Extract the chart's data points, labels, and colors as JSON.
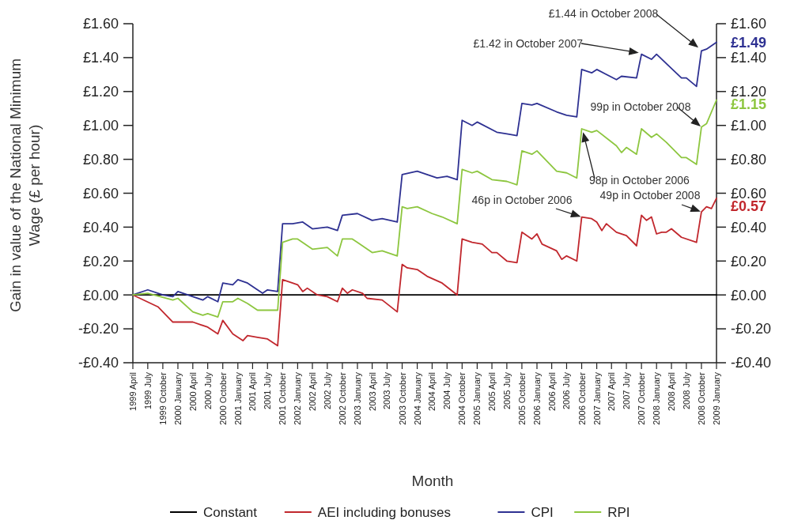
{
  "chart_data": {
    "type": "line",
    "xlabel": "Month",
    "ylabel": "Gain in value of the National Minimum Wage (£ per hour)",
    "xlim": [
      "1999-04",
      "2009-01"
    ],
    "xticks": [
      {
        "value": "1999-04",
        "label": "1999 April"
      },
      {
        "value": "1999-07",
        "label": "1999 July"
      },
      {
        "value": "1999-10",
        "label": "1999 October"
      },
      {
        "value": "2000-01",
        "label": "2000 January"
      },
      {
        "value": "2000-04",
        "label": "2000 April"
      },
      {
        "value": "2000-07",
        "label": "2000 July"
      },
      {
        "value": "2000-10",
        "label": "2000 October"
      },
      {
        "value": "2001-01",
        "label": "2001 January"
      },
      {
        "value": "2001-04",
        "label": "2001 April"
      },
      {
        "value": "2001-07",
        "label": "2001 July"
      },
      {
        "value": "2001-10",
        "label": "2001 October"
      },
      {
        "value": "2002-01",
        "label": "2002 January"
      },
      {
        "value": "2002-04",
        "label": "2002 April"
      },
      {
        "value": "2002-07",
        "label": "2002 July"
      },
      {
        "value": "2002-10",
        "label": "2002 October"
      },
      {
        "value": "2003-01",
        "label": "2003 January"
      },
      {
        "value": "2003-04",
        "label": "2003 April"
      },
      {
        "value": "2003-07",
        "label": "2003 July"
      },
      {
        "value": "2003-10",
        "label": "2003 October"
      },
      {
        "value": "2004-01",
        "label": "2004 January"
      },
      {
        "value": "2004-04",
        "label": "2004 April"
      },
      {
        "value": "2004-07",
        "label": "2004 July"
      },
      {
        "value": "2004-10",
        "label": "2004 October"
      },
      {
        "value": "2005-01",
        "label": "2005 January"
      },
      {
        "value": "2005-04",
        "label": "2005 April"
      },
      {
        "value": "2005-07",
        "label": "2005 July"
      },
      {
        "value": "2005-10",
        "label": "2005 October"
      },
      {
        "value": "2006-01",
        "label": "2006 January"
      },
      {
        "value": "2006-04",
        "label": "2006 April"
      },
      {
        "value": "2006-07",
        "label": "2006 July"
      },
      {
        "value": "2006-10",
        "label": "2006 October"
      },
      {
        "value": "2007-01",
        "label": "2007 January"
      },
      {
        "value": "2007-04",
        "label": "2007 April"
      },
      {
        "value": "2007-07",
        "label": "2007 July"
      },
      {
        "value": "2007-10",
        "label": "2007 October"
      },
      {
        "value": "2008-01",
        "label": "2008 January"
      },
      {
        "value": "2008-04",
        "label": "2008 April"
      },
      {
        "value": "2008-07",
        "label": "2008 July"
      },
      {
        "value": "2008-10",
        "label": "2008 October"
      },
      {
        "value": "2009-01",
        "label": "2009 January"
      }
    ],
    "ylim": [
      -0.4,
      1.6
    ],
    "yticks": [
      {
        "value": -0.4,
        "label": "-£0.40"
      },
      {
        "value": -0.2,
        "label": "-£0.20"
      },
      {
        "value": 0,
        "label": "£0.00"
      },
      {
        "value": 0.2,
        "label": "£0.20"
      },
      {
        "value": 0.4,
        "label": "£0.40"
      },
      {
        "value": 0.6,
        "label": "£0.60"
      },
      {
        "value": 0.8,
        "label": "£0.80"
      },
      {
        "value": 1.0,
        "label": "£1.00"
      },
      {
        "value": 1.2,
        "label": "£1.20"
      },
      {
        "value": 1.4,
        "label": "£1.40"
      },
      {
        "value": 1.6,
        "label": "£1.60"
      }
    ],
    "y2lim": [
      -0.4,
      1.6
    ],
    "y2ticks": [
      {
        "value": -0.4,
        "label": "-£0.40"
      },
      {
        "value": -0.2,
        "label": "-£0.20"
      },
      {
        "value": 0,
        "label": "£0.00"
      },
      {
        "value": 0.2,
        "label": "£0.20"
      },
      {
        "value": 0.4,
        "label": "£0.40"
      },
      {
        "value": 0.6,
        "label": "£0.60"
      },
      {
        "value": 0.8,
        "label": "£0.80"
      },
      {
        "value": 1.0,
        "label": "£1.00"
      },
      {
        "value": 1.2,
        "label": "£1.20"
      },
      {
        "value": 1.4,
        "label": "£1.40"
      },
      {
        "value": 1.6,
        "label": "£1.60"
      }
    ],
    "legend": "bottom",
    "grid": false,
    "marker": "none",
    "line_style": "solid",
    "series": [
      {
        "name": "Constant",
        "color": "#000000",
        "x": [
          "1999-04",
          "2009-01"
        ],
        "values": [
          0,
          0
        ]
      },
      {
        "name": "AEI including bonuses",
        "color": "#c1272d",
        "x": [
          "1999-04",
          "1999-09",
          "1999-12",
          "2000-01",
          "2000-04",
          "2000-07",
          "2000-09",
          "2000-10",
          "2000-12",
          "2001-02",
          "2001-03",
          "2001-05",
          "2001-07",
          "2001-09",
          "2001-10",
          "2001-12",
          "2002-01",
          "2002-02",
          "2002-03",
          "2002-05",
          "2002-07",
          "2002-09",
          "2002-10",
          "2002-11",
          "2002-12",
          "2003-02",
          "2003-03",
          "2003-06",
          "2003-09",
          "2003-10",
          "2003-11",
          "2004-01",
          "2004-03",
          "2004-06",
          "2004-09",
          "2004-10",
          "2004-12",
          "2005-02",
          "2005-04",
          "2005-05",
          "2005-07",
          "2005-09",
          "2005-10",
          "2005-12",
          "2006-01",
          "2006-02",
          "2006-05",
          "2006-06",
          "2006-07",
          "2006-09",
          "2006-10",
          "2006-12",
          "2007-01",
          "2007-02",
          "2007-03",
          "2007-05",
          "2007-07",
          "2007-09",
          "2007-10",
          "2007-11",
          "2007-12",
          "2008-01",
          "2008-02",
          "2008-03",
          "2008-04",
          "2008-06",
          "2008-09",
          "2008-10",
          "2008-11",
          "2008-12",
          "2009-01"
        ],
        "values": [
          0,
          -0.07,
          -0.16,
          -0.16,
          -0.16,
          -0.19,
          -0.23,
          -0.15,
          -0.23,
          -0.27,
          -0.24,
          -0.25,
          -0.26,
          -0.3,
          0.09,
          0.07,
          0.06,
          0.02,
          0.04,
          0,
          -0.01,
          -0.04,
          0.04,
          0.01,
          0.03,
          0.01,
          -0.02,
          -0.03,
          -0.1,
          0.18,
          0.16,
          0.15,
          0.11,
          0.07,
          0,
          0.33,
          0.31,
          0.3,
          0.25,
          0.25,
          0.2,
          0.19,
          0.37,
          0.33,
          0.36,
          0.3,
          0.26,
          0.21,
          0.23,
          0.2,
          0.46,
          0.45,
          0.43,
          0.38,
          0.42,
          0.37,
          0.35,
          0.29,
          0.47,
          0.44,
          0.46,
          0.36,
          0.37,
          0.37,
          0.39,
          0.34,
          0.31,
          0.49,
          0.52,
          0.51,
          0.57
        ],
        "value_labels": [
          null,
          null,
          null,
          null,
          null,
          null,
          null,
          null,
          null,
          null,
          null,
          null,
          null,
          null,
          null,
          null,
          null,
          null,
          null,
          null,
          null,
          null,
          null,
          null,
          null,
          null,
          null,
          null,
          null,
          null,
          null,
          null,
          null,
          null,
          null,
          null,
          null,
          null,
          null,
          null,
          null,
          null,
          null,
          null,
          null,
          null,
          null,
          null,
          null,
          null,
          null,
          null,
          null,
          null,
          null,
          null,
          null,
          null,
          null,
          null,
          null,
          null,
          null,
          null,
          null,
          null,
          null,
          null,
          null,
          null,
          "£0.57"
        ]
      },
      {
        "name": "CPI",
        "color": "#2e3192",
        "x": [
          "1999-04",
          "1999-07",
          "1999-10",
          "1999-12",
          "2000-01",
          "2000-06",
          "2000-07",
          "2000-09",
          "2000-10",
          "2000-12",
          "2001-01",
          "2001-03",
          "2001-05",
          "2001-06",
          "2001-07",
          "2001-09",
          "2001-10",
          "2001-12",
          "2002-02",
          "2002-04",
          "2002-07",
          "2002-09",
          "2002-10",
          "2003-01",
          "2003-04",
          "2003-06",
          "2003-09",
          "2003-10",
          "2004-01",
          "2004-03",
          "2004-05",
          "2004-07",
          "2004-09",
          "2004-10",
          "2004-12",
          "2005-01",
          "2005-05",
          "2005-07",
          "2005-09",
          "2005-10",
          "2005-12",
          "2006-01",
          "2006-05",
          "2006-07",
          "2006-09",
          "2006-10",
          "2006-12",
          "2007-01",
          "2007-05",
          "2007-06",
          "2007-09",
          "2007-10",
          "2007-12",
          "2008-01",
          "2008-06",
          "2008-07",
          "2008-09",
          "2008-10",
          "2008-11",
          "2009-01"
        ],
        "values": [
          0,
          0.03,
          0,
          -0.01,
          0.02,
          -0.03,
          -0.01,
          -0.04,
          0.07,
          0.06,
          0.09,
          0.07,
          0.03,
          0.01,
          0.03,
          0.02,
          0.42,
          0.42,
          0.43,
          0.39,
          0.4,
          0.38,
          0.47,
          0.48,
          0.44,
          0.45,
          0.43,
          0.71,
          0.73,
          0.71,
          0.69,
          0.7,
          0.68,
          1.03,
          1,
          1.02,
          0.96,
          0.95,
          0.94,
          1.13,
          1.12,
          1.13,
          1.08,
          1.06,
          1.05,
          1.33,
          1.31,
          1.33,
          1.27,
          1.29,
          1.28,
          1.42,
          1.39,
          1.42,
          1.28,
          1.28,
          1.23,
          1.44,
          1.45,
          1.49
        ],
        "value_labels": [
          null,
          null,
          null,
          null,
          null,
          null,
          null,
          null,
          null,
          null,
          null,
          null,
          null,
          null,
          null,
          null,
          null,
          null,
          null,
          null,
          null,
          null,
          null,
          null,
          null,
          null,
          null,
          null,
          null,
          null,
          null,
          null,
          null,
          null,
          null,
          null,
          null,
          null,
          null,
          null,
          null,
          null,
          null,
          null,
          null,
          null,
          null,
          null,
          null,
          null,
          null,
          null,
          null,
          null,
          null,
          null,
          null,
          null,
          null,
          "£1.49"
        ]
      },
      {
        "name": "RPI",
        "color": "#8dc63f",
        "x": [
          "1999-04",
          "1999-07",
          "1999-12",
          "2000-01",
          "2000-04",
          "2000-06",
          "2000-07",
          "2000-09",
          "2000-10",
          "2000-12",
          "2001-01",
          "2001-03",
          "2001-05",
          "2001-06",
          "2001-09",
          "2001-10",
          "2001-12",
          "2002-01",
          "2002-04",
          "2002-07",
          "2002-09",
          "2002-10",
          "2002-12",
          "2003-01",
          "2003-04",
          "2003-06",
          "2003-09",
          "2003-10",
          "2003-11",
          "2004-01",
          "2004-04",
          "2004-06",
          "2004-09",
          "2004-10",
          "2004-12",
          "2005-01",
          "2005-04",
          "2005-07",
          "2005-09",
          "2005-10",
          "2005-12",
          "2006-01",
          "2006-05",
          "2006-07",
          "2006-09",
          "2006-10",
          "2006-12",
          "2007-01",
          "2007-05",
          "2007-06",
          "2007-07",
          "2007-09",
          "2007-10",
          "2007-12",
          "2008-01",
          "2008-03",
          "2008-06",
          "2008-07",
          "2008-09",
          "2008-10",
          "2008-11",
          "2009-01"
        ],
        "values": [
          0,
          0.01,
          -0.03,
          -0.02,
          -0.1,
          -0.12,
          -0.11,
          -0.13,
          -0.04,
          -0.04,
          -0.02,
          -0.05,
          -0.09,
          -0.09,
          -0.09,
          0.31,
          0.33,
          0.33,
          0.27,
          0.28,
          0.23,
          0.33,
          0.33,
          0.31,
          0.25,
          0.26,
          0.23,
          0.52,
          0.51,
          0.52,
          0.48,
          0.46,
          0.42,
          0.74,
          0.72,
          0.73,
          0.68,
          0.67,
          0.65,
          0.85,
          0.83,
          0.85,
          0.73,
          0.72,
          0.69,
          0.98,
          0.96,
          0.97,
          0.88,
          0.84,
          0.87,
          0.83,
          0.98,
          0.93,
          0.95,
          0.9,
          0.81,
          0.81,
          0.77,
          0.99,
          1.01,
          1.15
        ],
        "value_labels": [
          null,
          null,
          null,
          null,
          null,
          null,
          null,
          null,
          null,
          null,
          null,
          null,
          null,
          null,
          null,
          null,
          null,
          null,
          null,
          null,
          null,
          null,
          null,
          null,
          null,
          null,
          null,
          null,
          null,
          null,
          null,
          null,
          null,
          null,
          null,
          null,
          null,
          null,
          null,
          null,
          null,
          null,
          null,
          null,
          null,
          null,
          null,
          null,
          null,
          null,
          null,
          null,
          null,
          null,
          null,
          null,
          null,
          null,
          null,
          null,
          null,
          "£1.15"
        ]
      }
    ],
    "annotations": [
      "£1.44 in October 2008",
      "£1.42 in October 2007",
      {
        "text": "99p in October 2008",
        "x": "2008-10",
        "y": 0.99
      },
      "98p in October 2006",
      {
        "text": "46p in October 2006",
        "x": "2006-10",
        "y": 0.46
      },
      {
        "text": "49p in October 2008",
        "x": "2008-10",
        "y": 0.49
      }
    ]
  }
}
